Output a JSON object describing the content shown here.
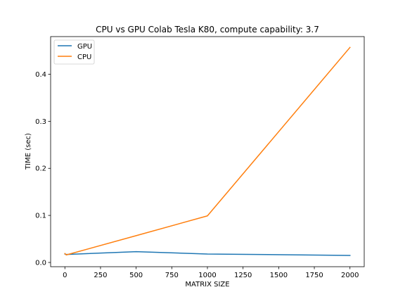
{
  "chart_data": {
    "type": "line",
    "title": "CPU vs GPU Colab Tesla K80, compute capability: 3.7",
    "xlabel": "MATRIX SIZE",
    "ylabel": "TIME (sec)",
    "xlim": [
      -100,
      2100
    ],
    "ylim": [
      -0.009,
      0.48
    ],
    "xticks": [
      0,
      250,
      500,
      750,
      1000,
      1250,
      1500,
      1750,
      2000
    ],
    "yticks": [
      0.0,
      0.1,
      0.2,
      0.3,
      0.4
    ],
    "ytick_labels": [
      "0.0",
      "0.1",
      "0.2",
      "0.3",
      "0.4"
    ],
    "grid": false,
    "legend_position": "upper-left",
    "x": [
      0,
      10,
      500,
      1000,
      2000
    ],
    "series": [
      {
        "name": "GPU",
        "color": "#1f77b4",
        "values": [
          0.018,
          0.017,
          0.023,
          0.018,
          0.015
        ]
      },
      {
        "name": "CPU",
        "color": "#ff7f0e",
        "values": [
          0.019,
          0.016,
          0.057,
          0.099,
          0.457
        ]
      }
    ]
  }
}
